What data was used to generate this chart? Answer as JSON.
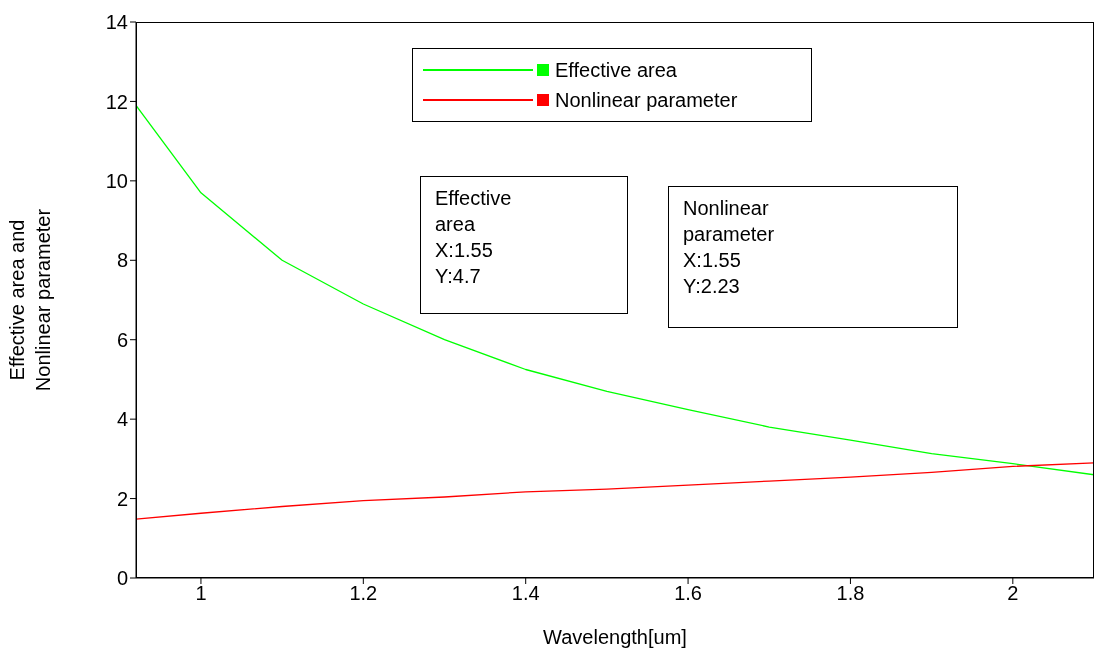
{
  "chart_data": {
    "type": "line",
    "xlabel": "Wavelength[um]",
    "ylabel": "Effective area and\nNonlinear parameter",
    "x": [
      0.92,
      1.0,
      1.1,
      1.2,
      1.3,
      1.4,
      1.5,
      1.6,
      1.7,
      1.8,
      1.9,
      2.0,
      2.1
    ],
    "series": [
      {
        "name": "Effective area",
        "color": "#00ff00",
        "values": [
          11.9,
          9.7,
          8.0,
          6.9,
          6.0,
          5.25,
          4.7,
          4.24,
          3.8,
          3.47,
          3.13,
          2.88,
          2.6
        ]
      },
      {
        "name": "Nonlinear parameter",
        "color": "#ff0000",
        "values": [
          1.48,
          1.63,
          1.8,
          1.95,
          2.04,
          2.17,
          2.24,
          2.34,
          2.44,
          2.54,
          2.66,
          2.81,
          2.9
        ]
      }
    ],
    "xlim": [
      0.92,
      2.1
    ],
    "xticks": [
      1,
      1.2,
      1.4,
      1.6,
      1.8,
      2
    ],
    "ylim": [
      0,
      14
    ],
    "yticks": [
      0,
      2,
      4,
      6,
      8,
      10,
      12,
      14
    ],
    "grid": false,
    "legend": "top",
    "marker": "none",
    "line_style": "solid",
    "annotations": [
      "Effective\narea\nX:1.55\nY:4.7",
      "Nonlinear\nparameter\nX:1.55\nY:2.23"
    ]
  }
}
